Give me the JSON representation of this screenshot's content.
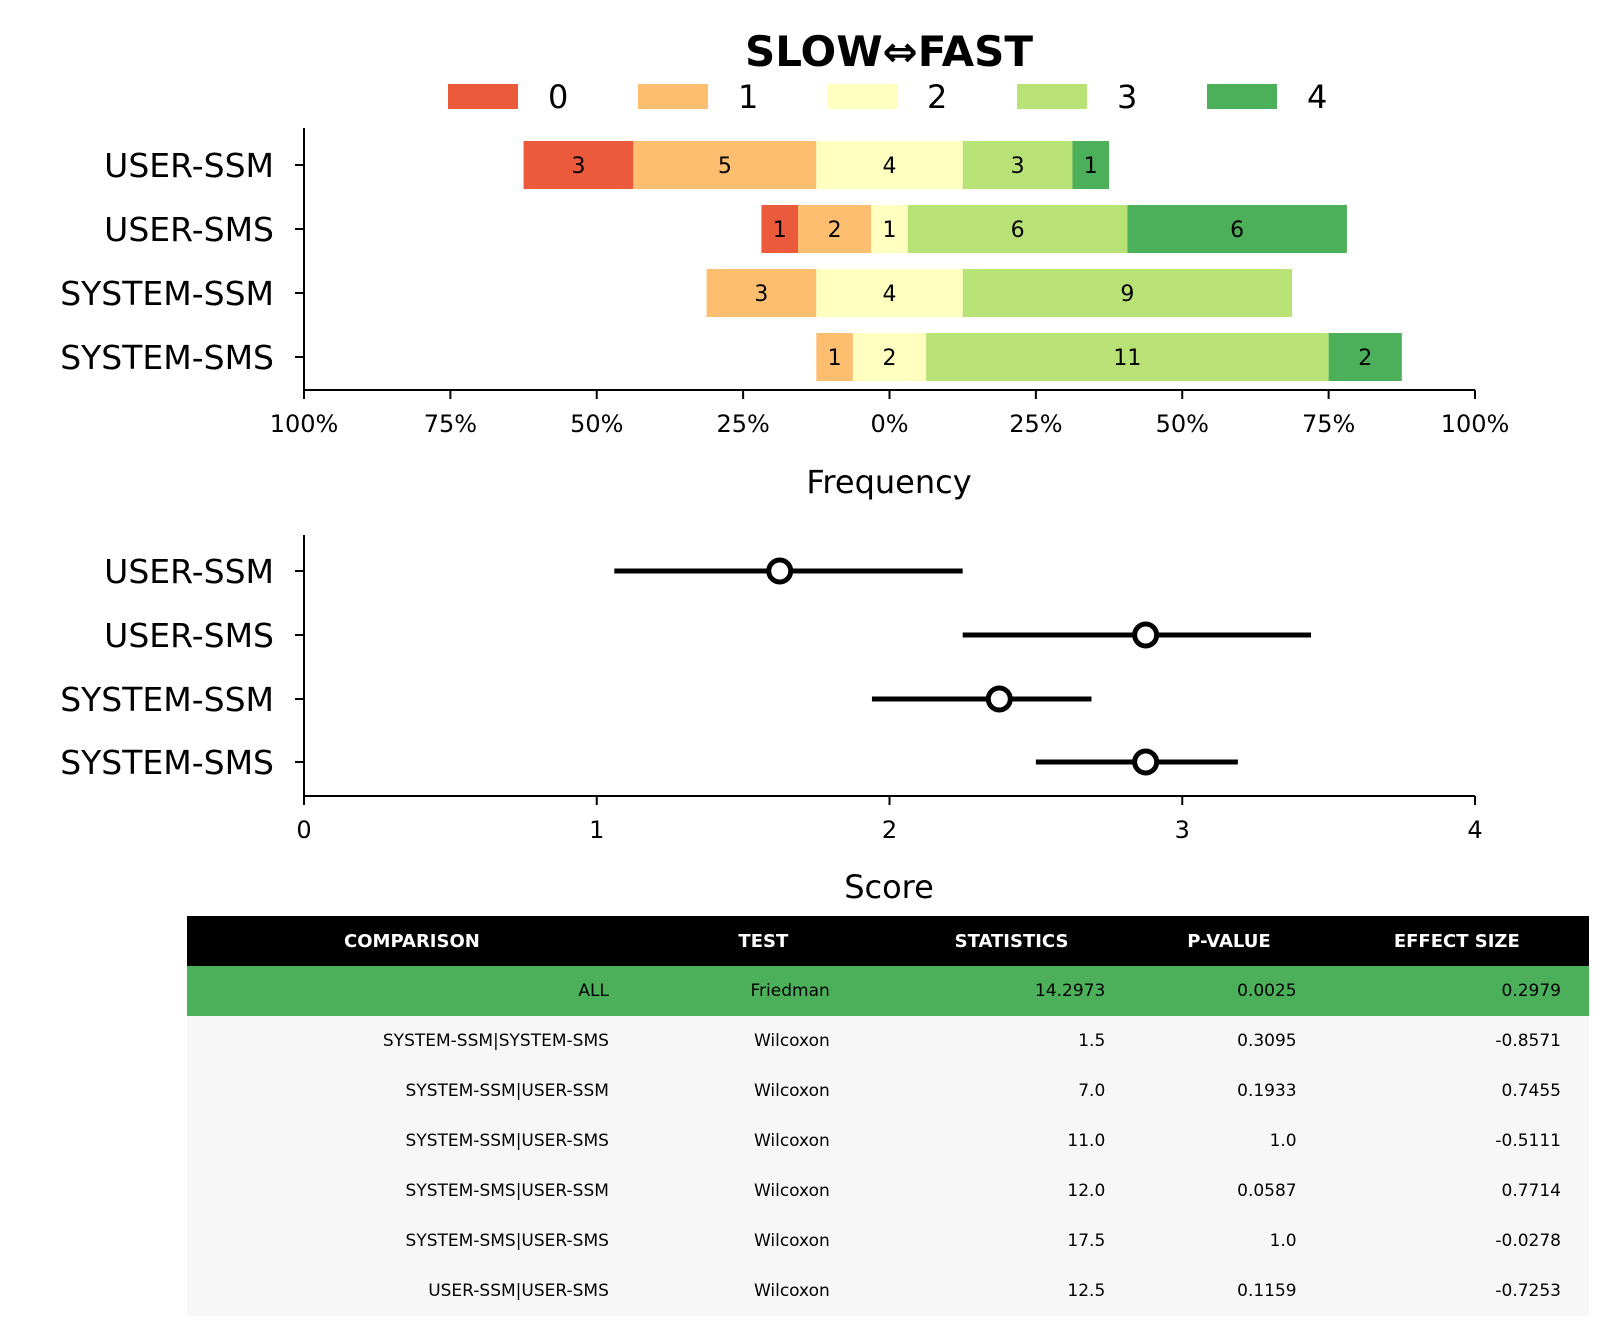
{
  "chart_data": [
    {
      "type": "bar",
      "orientation": "horizontal-diverging-stacked",
      "title": "SLOW⇔FAST",
      "xlabel": "Frequency",
      "ylabel": "",
      "xlim": [
        -100,
        100
      ],
      "x_ticks": [
        "100%",
        "75%",
        "50%",
        "25%",
        "0%",
        "25%",
        "50%",
        "75%",
        "100%"
      ],
      "legend": {
        "placement": "top",
        "entries": [
          "0",
          "1",
          "2",
          "3",
          "4"
        ]
      },
      "colors": [
        "#ec5a3c",
        "#fdbe6f",
        "#ffffbf",
        "#b9e276",
        "#4caf5a"
      ],
      "categories": [
        "USER-SSM",
        "USER-SMS",
        "SYSTEM-SSM",
        "SYSTEM-SMS"
      ],
      "series": [
        {
          "name": "0",
          "values": [
            3,
            1,
            0,
            0
          ]
        },
        {
          "name": "1",
          "values": [
            5,
            2,
            3,
            1
          ]
        },
        {
          "name": "2",
          "values": [
            4,
            1,
            4,
            2
          ]
        },
        {
          "name": "3",
          "values": [
            3,
            6,
            9,
            11
          ]
        },
        {
          "name": "4",
          "values": [
            1,
            6,
            0,
            2
          ]
        }
      ]
    },
    {
      "type": "scatter",
      "subtype": "point-with-interval",
      "xlabel": "Score",
      "xlim": [
        0,
        4
      ],
      "x_ticks": [
        "0",
        "1",
        "2",
        "3",
        "4"
      ],
      "categories": [
        "USER-SSM",
        "USER-SMS",
        "SYSTEM-SSM",
        "SYSTEM-SMS"
      ],
      "points": [
        {
          "center": 1.625,
          "low": 1.06,
          "high": 2.25
        },
        {
          "center": 2.875,
          "low": 2.25,
          "high": 3.44
        },
        {
          "center": 2.375,
          "low": 1.94,
          "high": 2.69
        },
        {
          "center": 2.875,
          "low": 2.5,
          "high": 3.19
        }
      ]
    },
    {
      "type": "table",
      "columns": [
        "COMPARISON",
        "TEST",
        "STATISTICS",
        "P-VALUE",
        "EFFECT SIZE"
      ],
      "highlight_color": "#4caf5a",
      "rows": [
        [
          "ALL",
          "Friedman",
          "14.2973",
          "0.0025",
          "0.2979"
        ],
        [
          "SYSTEM-SSM|SYSTEM-SMS",
          "Wilcoxon",
          "1.5",
          "0.3095",
          "-0.8571"
        ],
        [
          "SYSTEM-SSM|USER-SSM",
          "Wilcoxon",
          "7.0",
          "0.1933",
          "0.7455"
        ],
        [
          "SYSTEM-SSM|USER-SMS",
          "Wilcoxon",
          "11.0",
          "1.0",
          "-0.5111"
        ],
        [
          "SYSTEM-SMS|USER-SSM",
          "Wilcoxon",
          "12.0",
          "0.0587",
          "0.7714"
        ],
        [
          "SYSTEM-SMS|USER-SMS",
          "Wilcoxon",
          "17.5",
          "1.0",
          "-0.0278"
        ],
        [
          "USER-SSM|USER-SMS",
          "Wilcoxon",
          "12.5",
          "0.1159",
          "-0.7253"
        ]
      ]
    }
  ]
}
